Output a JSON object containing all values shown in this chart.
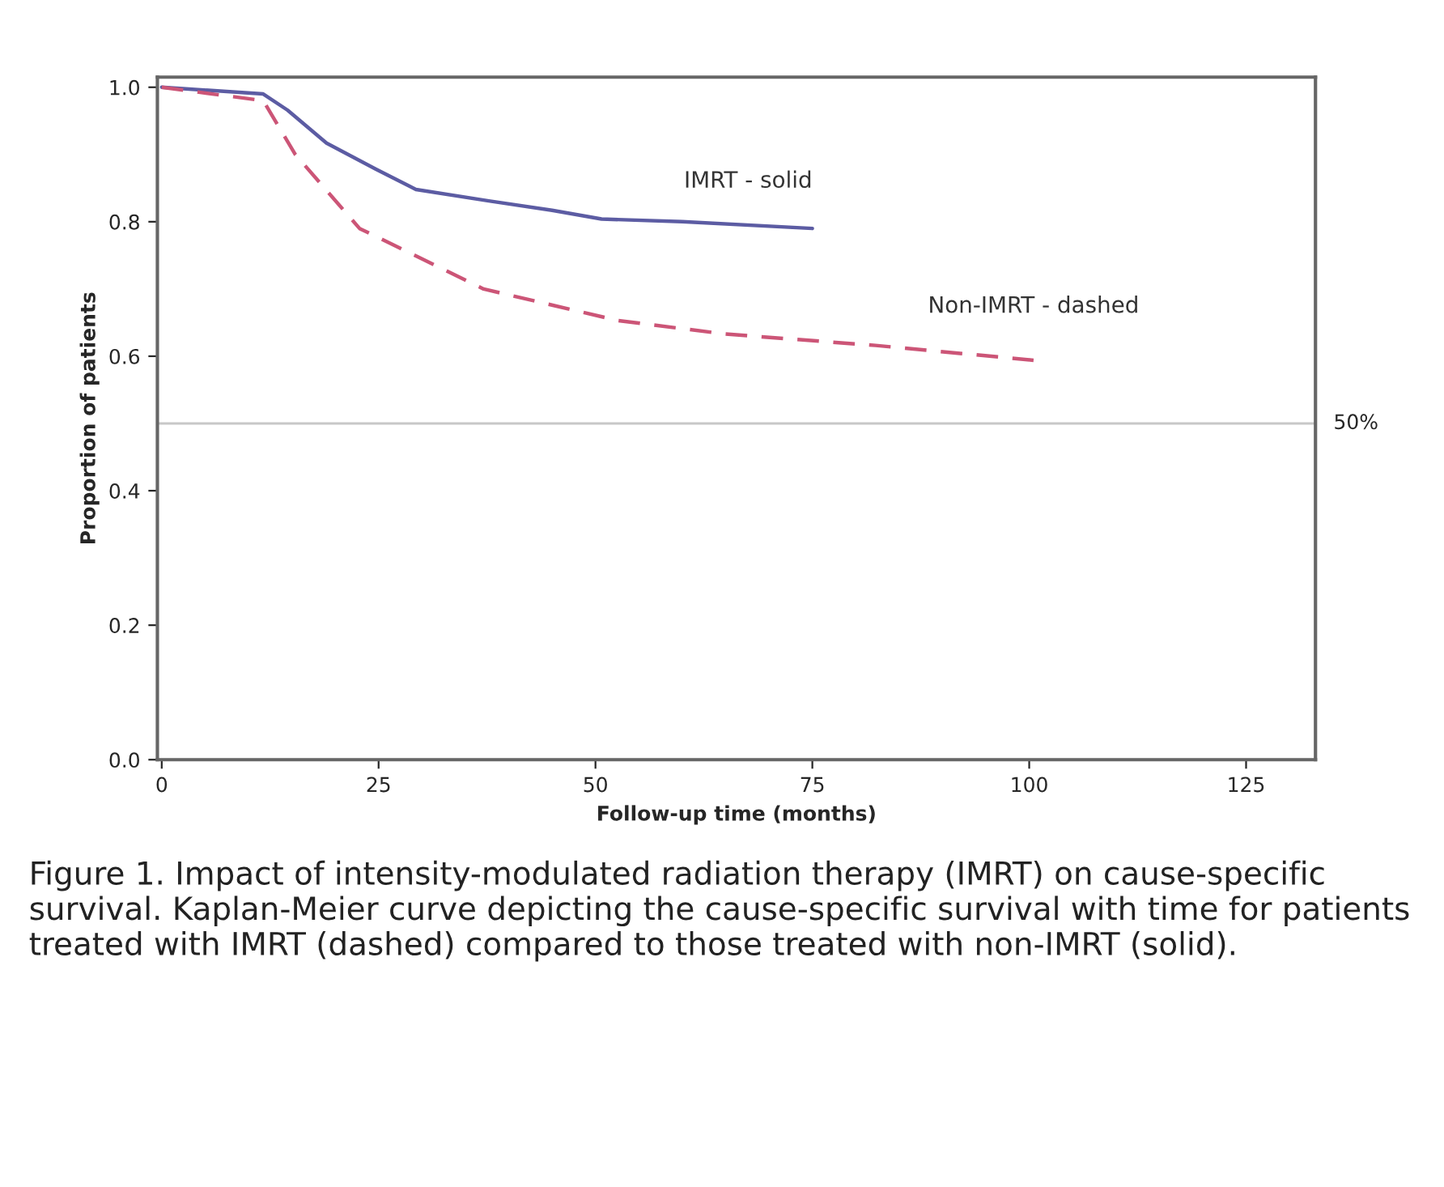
{
  "chart_data": {
    "type": "line",
    "xlabel": "Follow-up time (months)",
    "ylabel": "Proportion of patients",
    "xlim": [
      -0.5,
      133
    ],
    "xticks": [
      0,
      25,
      50,
      75,
      100,
      125
    ],
    "ylim": [
      0,
      1.015
    ],
    "yticks": [
      {
        "value": 0,
        "label": "0.0"
      },
      {
        "value": 0.2,
        "label": "0.2"
      },
      {
        "value": 0.4,
        "label": "0.4"
      },
      {
        "value": 0.6,
        "label": "0.6"
      },
      {
        "value": 0.8,
        "label": "0.8"
      },
      {
        "value": 1.0,
        "label": "1.0"
      }
    ],
    "grid": false,
    "legend": false,
    "marker": "none",
    "series": [
      {
        "name": "IMRT - solid",
        "color": "#5c5ca3",
        "line_style": "solid",
        "x": [
          0,
          11.7,
          14.5,
          19,
          24.7,
          29.3,
          37.7,
          45,
          50.7,
          60,
          75
        ],
        "values": [
          1.0,
          0.99,
          0.966,
          0.917,
          0.878,
          0.848,
          0.831,
          0.817,
          0.804,
          0.8,
          0.79
        ]
      },
      {
        "name": "Non-IMRT - dashed",
        "color": "#cc5577",
        "line_style": "dashed",
        "x": [
          0,
          11.7,
          15.4,
          22.8,
          27.9,
          37.1,
          52.6,
          65,
          82.3,
          100.5
        ],
        "values": [
          1.0,
          0.98,
          0.9,
          0.79,
          0.758,
          0.7,
          0.653,
          0.633,
          0.616,
          0.594
        ]
      }
    ],
    "ref_lines": [
      {
        "axis": "y",
        "value": 0.5,
        "label": "50%",
        "color": "#c8c8c8"
      }
    ],
    "annotations": [
      "Figure 1. Impact of intensity-modulated radiation therapy (IMRT) on cause-specific survival. Kaplan-Meier curve depicting the cause-specific survival with time for patients treated with IMRT (dashed) compared to those treated with non-IMRT (solid)."
    ]
  }
}
